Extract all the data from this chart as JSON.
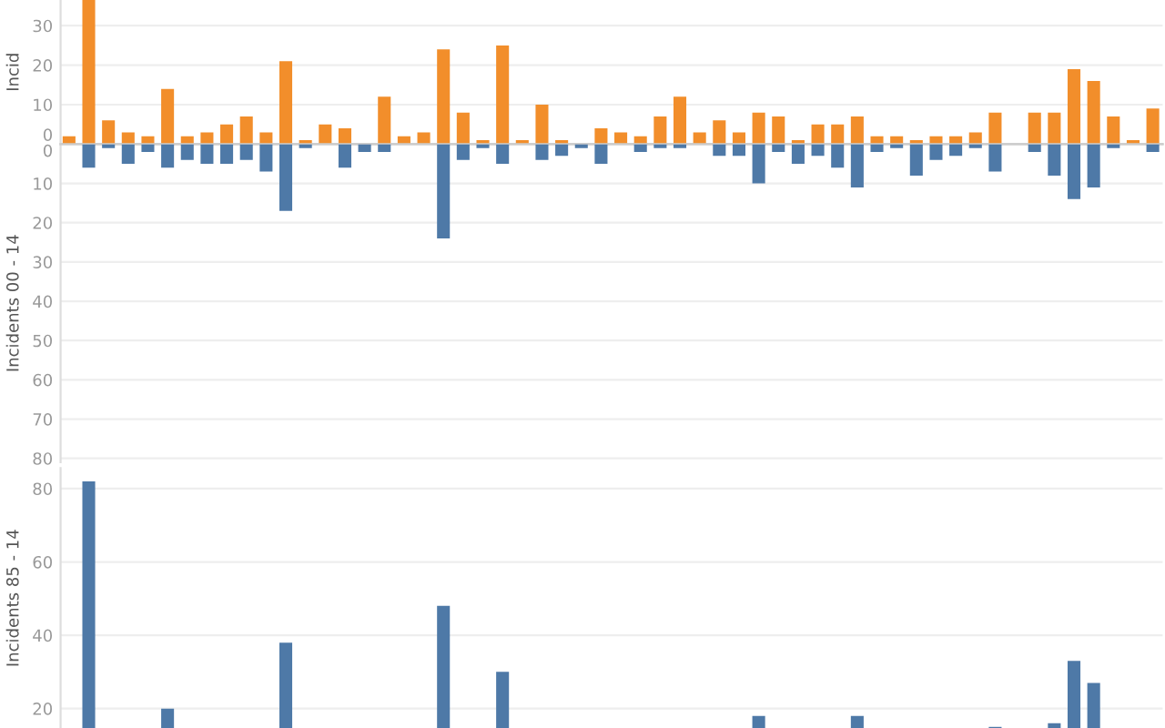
{
  "chart_data": [
    {
      "type": "bar",
      "ylabel": "Incid",
      "categories": [
        null,
        null,
        null,
        null,
        null,
        null,
        null,
        null,
        null,
        null,
        null,
        null,
        null,
        null,
        null,
        null,
        null,
        null,
        null,
        null,
        null,
        null,
        null,
        null,
        null,
        null,
        null,
        null,
        null,
        null,
        null,
        null,
        null,
        null,
        null,
        null,
        null,
        null,
        null,
        null,
        null,
        null,
        null,
        null,
        null,
        null,
        null,
        null,
        null,
        null,
        null,
        null,
        null,
        null,
        null,
        null
      ],
      "series": [
        {
          "color": "#f28e2b",
          "values": [
            2,
            36.5,
            6,
            3,
            2,
            14,
            2,
            3,
            5,
            7,
            3,
            21,
            1,
            5,
            4,
            null,
            12,
            2,
            3,
            24,
            8,
            1,
            25,
            1,
            10,
            1,
            null,
            4,
            3,
            2,
            7,
            12,
            3,
            6,
            3,
            8,
            7,
            1,
            5,
            5,
            7,
            2,
            2,
            1,
            2,
            2,
            3,
            8,
            null,
            8,
            8,
            19,
            16,
            7,
            1,
            9
          ]
        }
      ],
      "ylim": [
        0,
        36.5
      ],
      "yticks": [
        0,
        10,
        20,
        30
      ],
      "grid": "y",
      "tick_labels": "y"
    },
    {
      "type": "bar",
      "ylabel": "Incidents 00 - 14",
      "categories": [
        null,
        null,
        null,
        null,
        null,
        null,
        null,
        null,
        null,
        null,
        null,
        null,
        null,
        null,
        null,
        null,
        null,
        null,
        null,
        null,
        null,
        null,
        null,
        null,
        null,
        null,
        null,
        null,
        null,
        null,
        null,
        null,
        null,
        null,
        null,
        null,
        null,
        null,
        null,
        null,
        null,
        null,
        null,
        null,
        null,
        null,
        null,
        null,
        null,
        null,
        null,
        null,
        null,
        null,
        null,
        null
      ],
      "series": [
        {
          "color": "#4e79a7",
          "values": [
            null,
            6,
            1,
            5,
            2,
            6,
            4,
            5,
            5,
            4,
            7,
            17,
            1,
            null,
            6,
            2,
            2,
            null,
            null,
            24,
            4,
            1,
            5,
            null,
            4,
            3,
            1,
            5,
            null,
            2,
            1,
            1,
            null,
            3,
            3,
            10,
            2,
            5,
            3,
            6,
            11,
            2,
            1,
            8,
            4,
            3,
            1,
            7,
            null,
            2,
            8,
            14,
            11,
            1,
            null,
            2
          ]
        }
      ],
      "ylim": [
        81,
        0
      ],
      "yticks": [
        0,
        10,
        20,
        30,
        40,
        50,
        60,
        70,
        80
      ],
      "grid": "y",
      "tick_labels": "y"
    },
    {
      "type": "bar",
      "ylabel": "Incidents 85 - 14",
      "categories": [
        null,
        null,
        null,
        null,
        null,
        null,
        null,
        null,
        null,
        null,
        null,
        null,
        null,
        null,
        null,
        null,
        null,
        null,
        null,
        null,
        null,
        null,
        null,
        null,
        null,
        null,
        null,
        null,
        null,
        null,
        null,
        null,
        null,
        null,
        null,
        null,
        null,
        null,
        null,
        null,
        null,
        null,
        null,
        null,
        null,
        null,
        null,
        null,
        null,
        null,
        null,
        null,
        null,
        null,
        null,
        null
      ],
      "series": [
        {
          "color": "#4e79a7",
          "values": [
            null,
            82,
            null,
            null,
            null,
            20,
            null,
            null,
            null,
            null,
            null,
            38,
            null,
            null,
            null,
            null,
            null,
            null,
            null,
            48,
            null,
            null,
            30,
            null,
            null,
            null,
            null,
            null,
            null,
            null,
            null,
            null,
            null,
            null,
            null,
            18,
            null,
            null,
            null,
            null,
            18,
            null,
            null,
            null,
            null,
            null,
            null,
            15,
            null,
            null,
            16,
            33,
            27,
            null,
            null,
            null
          ]
        }
      ],
      "ylim": [
        14.7,
        85.6
      ],
      "yticks": [
        20,
        40,
        60,
        80
      ],
      "grid": "y",
      "tick_labels": "y"
    }
  ]
}
